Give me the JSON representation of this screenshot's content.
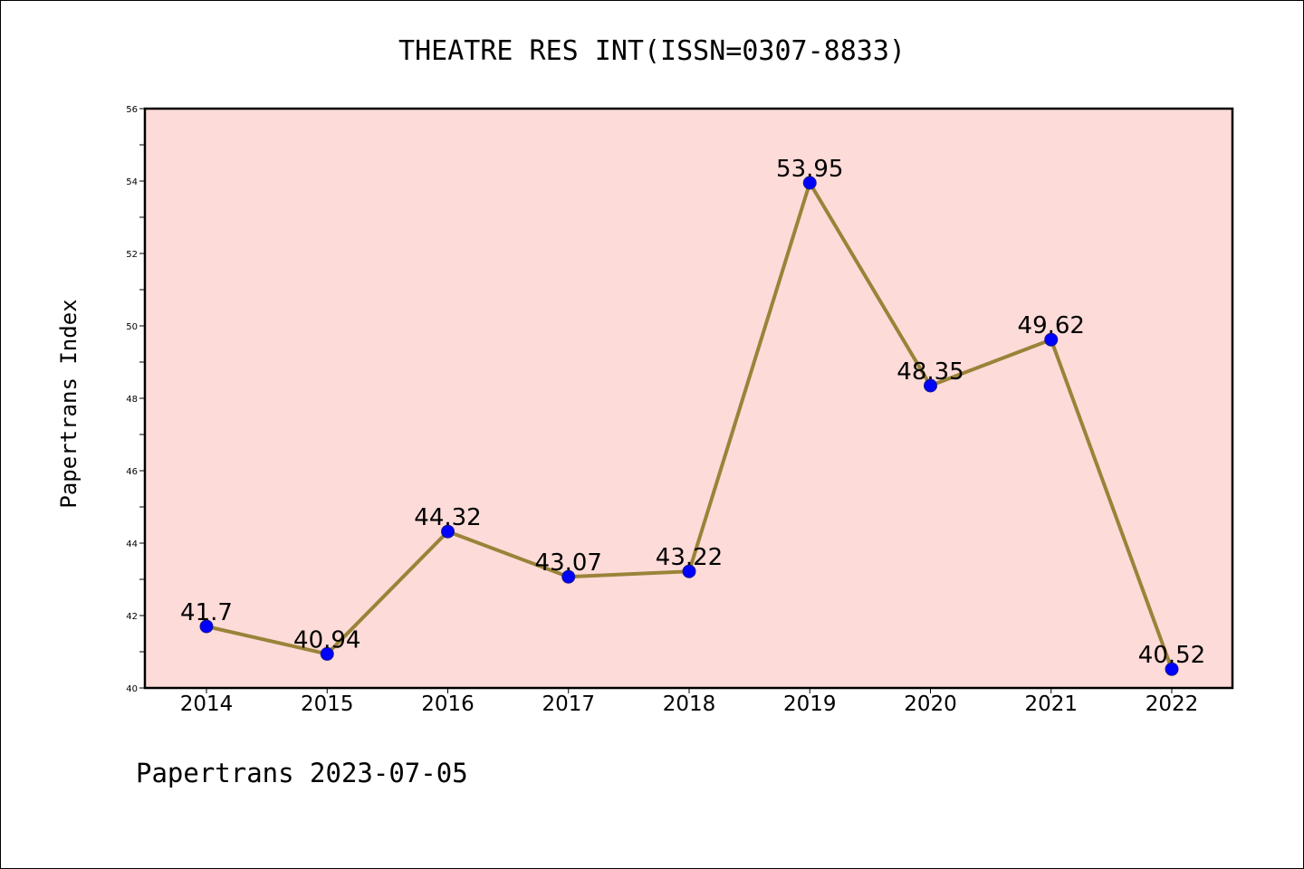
{
  "chart_data": {
    "type": "line",
    "title": "THEATRE RES INT(ISSN=0307-8833)",
    "ylabel": "Papertrans Index",
    "xlabel": "",
    "categories": [
      "2014",
      "2015",
      "2016",
      "2017",
      "2018",
      "2019",
      "2020",
      "2021",
      "2022"
    ],
    "values": [
      41.7,
      40.94,
      44.32,
      43.07,
      43.22,
      53.95,
      48.35,
      49.62,
      40.52
    ],
    "value_labels": [
      "41.7",
      "40.94",
      "44.32",
      "43.07",
      "43.22",
      "53.95",
      "48.35",
      "49.62",
      "40.52"
    ],
    "ylim": [
      40,
      56
    ],
    "yticks": [
      40,
      42,
      44,
      46,
      48,
      50,
      52,
      54,
      56
    ],
    "grid": false,
    "colors": {
      "plot_background": "#fddbd8",
      "line": "#9a8339",
      "marker": "#0000ff"
    }
  },
  "footer": {
    "text": "Papertrans 2023-07-05"
  }
}
